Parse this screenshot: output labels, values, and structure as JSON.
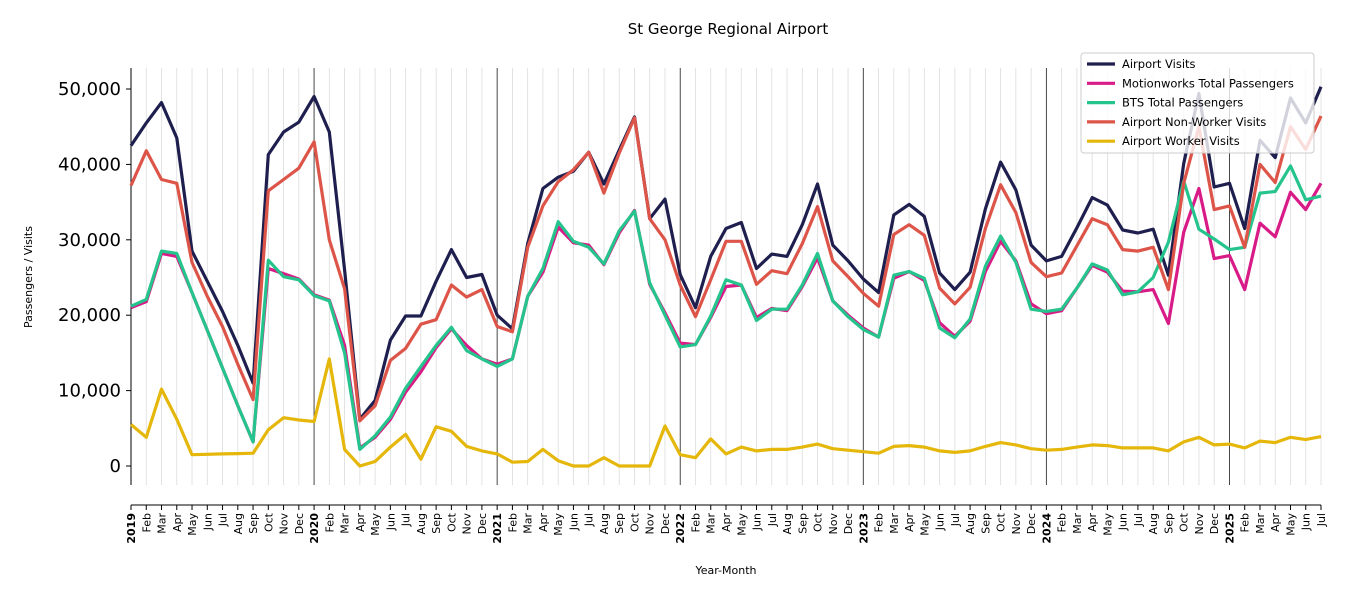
{
  "chart_data": {
    "type": "line",
    "title": "St George Regional Airport",
    "xlabel": "Year-Month",
    "ylabel": "Passengers / Visits",
    "ylim": [
      -2500,
      52500
    ],
    "yticks": [
      0,
      10000,
      20000,
      30000,
      40000,
      50000
    ],
    "ytick_labels": [
      "0",
      "10,000",
      "20,000",
      "30,000",
      "40,000",
      "50,000"
    ],
    "grid": "vertical monthly gridlines, darker lines at each January",
    "legend_position": "top-right",
    "x": [
      "2019",
      "Feb",
      "Mar",
      "Apr",
      "May",
      "Jun",
      "Jul",
      "Aug",
      "Sep",
      "Oct",
      "Nov",
      "Dec",
      "2020",
      "Feb",
      "Mar",
      "Apr",
      "May",
      "Jun",
      "Jul",
      "Aug",
      "Sep",
      "Oct",
      "Nov",
      "Dec",
      "2021",
      "Feb",
      "Mar",
      "Apr",
      "May",
      "Jun",
      "Jul",
      "Aug",
      "Sep",
      "Oct",
      "Nov",
      "Dec",
      "2022",
      "Feb",
      "Mar",
      "Apr",
      "May",
      "Jun",
      "Jul",
      "Aug",
      "Sep",
      "Oct",
      "Nov",
      "Dec",
      "2023",
      "Feb",
      "Mar",
      "Apr",
      "May",
      "Jun",
      "Jul",
      "Aug",
      "Sep",
      "Oct",
      "Nov",
      "Dec",
      "2024",
      "Feb",
      "Mar",
      "Apr",
      "May",
      "Jun",
      "Jul",
      "Aug",
      "Sep",
      "Oct",
      "Nov",
      "Dec",
      "2025",
      "Feb",
      "Mar",
      "Apr",
      "May",
      "Jun",
      "Jul"
    ],
    "series": [
      {
        "name": "Airport Visits",
        "color": "#1f1f4f",
        "values": [
          42500,
          45500,
          48200,
          43500,
          28500,
          24500,
          20500,
          16000,
          11000,
          41300,
          44300,
          45600,
          49000,
          44300,
          26000,
          6200,
          8700,
          16700,
          19900,
          19900,
          24500,
          28700,
          25000,
          25400,
          20000,
          18200,
          29500,
          36800,
          38300,
          39100,
          41600,
          37400,
          41900,
          46300,
          32800,
          35400,
          25400,
          21000,
          27800,
          31500,
          32300,
          26200,
          28100,
          27800,
          32000,
          37400,
          29300,
          27200,
          24800,
          23000,
          33300,
          34700,
          33100,
          25600,
          23400,
          25700,
          34100,
          40300,
          36600,
          29300,
          27200,
          27800,
          31600,
          35600,
          34600,
          31300,
          30900,
          31400,
          25300,
          40100,
          49400,
          37000,
          37500,
          31500,
          43200,
          40900,
          48800,
          45500,
          50300
        ]
      },
      {
        "name": "Motionworks Total Passengers",
        "color": "#d81b87",
        "values": [
          21000,
          21800,
          28200,
          27800,
          23000,
          18000,
          13000,
          8000,
          3200,
          26200,
          25500,
          24800,
          22700,
          22000,
          16000,
          2400,
          3800,
          6200,
          9800,
          12500,
          15700,
          18200,
          16000,
          14200,
          13500,
          14200,
          22500,
          25700,
          31700,
          29600,
          29300,
          26700,
          30900,
          33900,
          24100,
          20300,
          16300,
          16100,
          19700,
          23800,
          24000,
          19700,
          20900,
          20600,
          23800,
          27600,
          21900,
          20000,
          18300,
          17100,
          24900,
          25800,
          24600,
          19000,
          17200,
          19200,
          25800,
          29800,
          27200,
          21500,
          20200,
          20600,
          23600,
          26600,
          25700,
          23200,
          23100,
          23400,
          18900,
          31000,
          36800,
          27500,
          27900,
          23400,
          32200,
          30400,
          36300,
          34000,
          37500
        ]
      },
      {
        "name": "BTS Total Passengers",
        "color": "#26c48d",
        "values": [
          21200,
          22100,
          28500,
          28200,
          23000,
          18000,
          13000,
          8000,
          3200,
          27300,
          25100,
          24700,
          22600,
          21900,
          15000,
          2200,
          4000,
          6500,
          10300,
          13200,
          16000,
          18400,
          15300,
          14200,
          13200,
          14200,
          22500,
          26200,
          32400,
          29800,
          29000,
          26800,
          31200,
          33800,
          24300,
          20000,
          15800,
          16100,
          19900,
          24700,
          24000,
          19300,
          20800,
          20800,
          24000,
          28200,
          21900,
          19800,
          18100,
          17100,
          25300,
          25800,
          24900,
          18300,
          17000,
          19500,
          26500,
          30500,
          27000,
          20800,
          20500,
          20800,
          23600,
          26800,
          26000,
          22700,
          23100,
          25000,
          29700,
          37800,
          31400,
          30100,
          28700,
          29000,
          36200,
          36400,
          39800,
          35300,
          35800
        ]
      },
      {
        "name": "Airport Non-Worker Visits",
        "color": "#dd5449",
        "values": [
          37200,
          41800,
          38000,
          37500,
          27000,
          22500,
          18500,
          13500,
          8800,
          36500,
          38000,
          39500,
          43000,
          30000,
          23500,
          6000,
          8000,
          14000,
          15600,
          18800,
          19400,
          24000,
          22400,
          23400,
          18500,
          17800,
          29000,
          34500,
          37700,
          39300,
          41600,
          36200,
          41500,
          46200,
          32800,
          30000,
          24000,
          19800,
          24700,
          29800,
          29800,
          24100,
          25900,
          25500,
          29500,
          34400,
          27200,
          25100,
          22900,
          21200,
          30700,
          32000,
          30600,
          23600,
          21500,
          23700,
          31500,
          37300,
          33600,
          27000,
          25100,
          25600,
          29200,
          32800,
          32000,
          28700,
          28500,
          29000,
          23400,
          37500,
          45000,
          34000,
          34500,
          29000,
          40000,
          37600,
          45000,
          42000,
          46400
        ]
      },
      {
        "name": "Airport Worker Visits",
        "color": "#e5b70b",
        "values": [
          5500,
          3800,
          10200,
          6200,
          1500,
          1550,
          1600,
          1650,
          1700,
          4800,
          6400,
          6100,
          5900,
          14200,
          2200,
          0,
          600,
          2500,
          4200,
          900,
          5200,
          4600,
          2600,
          2000,
          1600,
          500,
          600,
          2200,
          700,
          0,
          0,
          1100,
          0,
          0,
          0,
          5300,
          1500,
          1100,
          3600,
          1600,
          2500,
          2000,
          2200,
          2200,
          2500,
          2900,
          2300,
          2100,
          1900,
          1700,
          2600,
          2700,
          2500,
          2000,
          1800,
          2000,
          2600,
          3100,
          2800,
          2300,
          2100,
          2200,
          2500,
          2800,
          2700,
          2400,
          2400,
          2400,
          2000,
          3200,
          3800,
          2800,
          2900,
          2400,
          3300,
          3100,
          3800,
          3500,
          3900
        ]
      }
    ]
  }
}
